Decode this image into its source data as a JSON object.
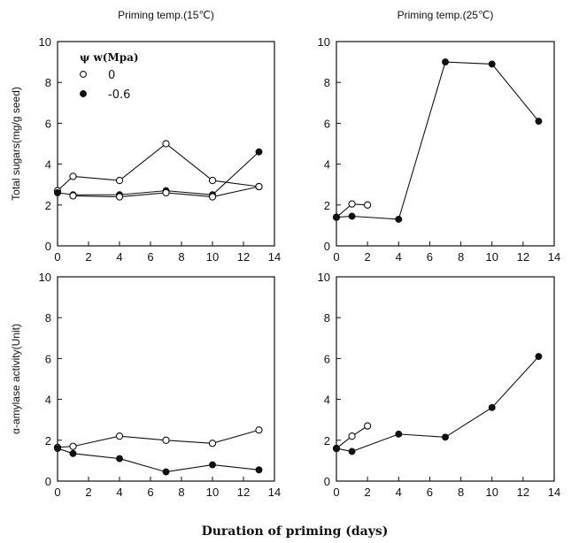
{
  "chart_data": [
    {
      "type": "line",
      "title": "Priming temp.(15℃)",
      "ylabel": "Total sugars(mg/g seed)",
      "xlabel": "",
      "xlim": [
        0,
        14
      ],
      "ylim": [
        0,
        10
      ],
      "xticks": [
        0,
        2,
        4,
        6,
        8,
        10,
        12,
        14
      ],
      "yticks": [
        0,
        2,
        4,
        6,
        8,
        10
      ],
      "legend": {
        "title": "ψ w(Mpa)",
        "position": "top-left",
        "entries": [
          {
            "label": "0",
            "marker": "open-circle"
          },
          {
            "label": "-0.6",
            "marker": "filled-circle"
          }
        ]
      },
      "series": [
        {
          "name": "0",
          "marker": "open-circle",
          "x": [
            0,
            1,
            4,
            7,
            10,
            13
          ],
          "y": [
            2.7,
            3.4,
            3.2,
            5.0,
            3.2,
            2.9
          ]
        },
        {
          "name": "-0.6",
          "marker": "filled-circle",
          "x": [
            0,
            1,
            4,
            7,
            10,
            13
          ],
          "y": [
            2.6,
            2.5,
            2.5,
            2.7,
            2.5,
            4.6
          ]
        },
        {
          "name": "",
          "marker": "open-circle",
          "x": [
            1,
            4,
            7,
            10,
            13
          ],
          "y": [
            2.45,
            2.4,
            2.6,
            2.4,
            2.9
          ]
        }
      ]
    },
    {
      "type": "line",
      "title": "Priming temp.(25℃)",
      "ylabel": "",
      "xlabel": "",
      "xlim": [
        0,
        14
      ],
      "ylim": [
        0,
        10
      ],
      "xticks": [
        0,
        2,
        4,
        6,
        8,
        10,
        12,
        14
      ],
      "yticks": [
        0,
        2,
        4,
        6,
        8,
        10
      ],
      "series": [
        {
          "name": "0",
          "marker": "open-circle",
          "x": [
            0,
            1,
            2
          ],
          "y": [
            1.4,
            2.05,
            2.0
          ]
        },
        {
          "name": "-0.6",
          "marker": "filled-circle",
          "x": [
            0,
            1,
            4,
            7,
            10,
            13
          ],
          "y": [
            1.4,
            1.45,
            1.3,
            9.0,
            8.9,
            6.1
          ]
        }
      ]
    },
    {
      "type": "line",
      "title": "",
      "ylabel": "α-amylase activity(Unit)",
      "xlabel": "",
      "xlim": [
        0,
        14
      ],
      "ylim": [
        0,
        10
      ],
      "xticks": [
        0,
        2,
        4,
        6,
        8,
        10,
        12,
        14
      ],
      "yticks": [
        0,
        2,
        4,
        6,
        8,
        10
      ],
      "series": [
        {
          "name": "0",
          "marker": "open-circle",
          "x": [
            0,
            1,
            4,
            7,
            10,
            13
          ],
          "y": [
            1.65,
            1.7,
            2.2,
            2.0,
            1.85,
            2.5
          ]
        },
        {
          "name": "-0.6",
          "marker": "filled-circle",
          "x": [
            0,
            1,
            4,
            7,
            10,
            13
          ],
          "y": [
            1.6,
            1.35,
            1.1,
            0.45,
            0.8,
            0.55
          ]
        }
      ]
    },
    {
      "type": "line",
      "title": "",
      "ylabel": "",
      "xlabel": "",
      "xlim": [
        0,
        14
      ],
      "ylim": [
        0,
        10
      ],
      "xticks": [
        0,
        2,
        4,
        6,
        8,
        10,
        12,
        14
      ],
      "yticks": [
        0,
        2,
        4,
        6,
        8,
        10
      ],
      "series": [
        {
          "name": "0",
          "marker": "open-circle",
          "x": [
            0,
            1,
            2
          ],
          "y": [
            1.6,
            2.2,
            2.7
          ]
        },
        {
          "name": "-0.6",
          "marker": "filled-circle",
          "x": [
            0,
            1,
            4,
            7,
            10,
            13
          ],
          "y": [
            1.6,
            1.45,
            2.3,
            2.15,
            3.6,
            6.1
          ]
        }
      ]
    }
  ],
  "figure": {
    "xlabel": "Duration of priming (days)"
  }
}
